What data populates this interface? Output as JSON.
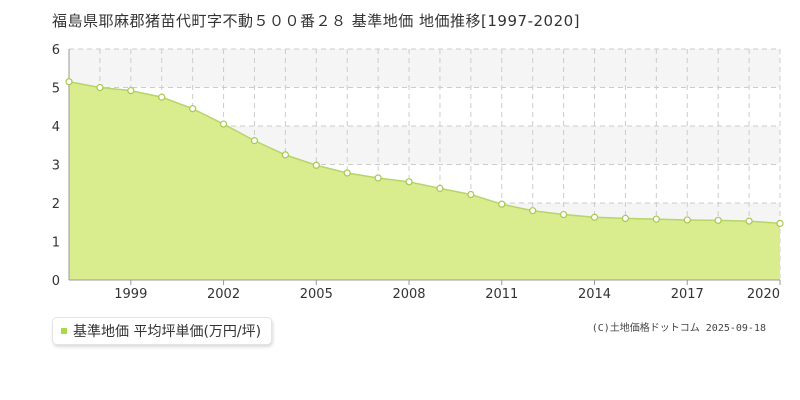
{
  "title": "福島県耶麻郡猪苗代町字不動５００番２８ 基準地価 地価推移[1997-2020]",
  "legend": {
    "label": "基準地価 平均坪単価(万円/坪)"
  },
  "credit": "(C)土地価格ドットコム 2025-09-18",
  "colors": {
    "area_fill": "#d9ec8e",
    "line": "#b6d56a",
    "marker_fill": "#ffffff",
    "marker_stroke": "#a6c94c",
    "legend_swatch": "#a9d94a",
    "grid": "#cccccc",
    "band": "#f5f5f5",
    "axis_text": "#333333"
  },
  "chart_data": {
    "type": "area",
    "x": [
      1997,
      1998,
      1999,
      2000,
      2001,
      2002,
      2003,
      2004,
      2005,
      2006,
      2007,
      2008,
      2009,
      2010,
      2011,
      2012,
      2013,
      2014,
      2015,
      2016,
      2017,
      2018,
      2019,
      2020
    ],
    "series": [
      {
        "name": "基準地価 平均坪単価(万円/坪)",
        "values": [
          5.15,
          5.0,
          4.92,
          4.75,
          4.45,
          4.05,
          3.62,
          3.25,
          2.98,
          2.78,
          2.65,
          2.55,
          2.38,
          2.22,
          1.97,
          1.8,
          1.7,
          1.63,
          1.6,
          1.58,
          1.56,
          1.55,
          1.53,
          1.47
        ]
      }
    ],
    "xticks": [
      "1999",
      "2002",
      "2005",
      "2008",
      "2011",
      "2014",
      "2017",
      "2020"
    ],
    "yticks": [
      "0",
      "1",
      "2",
      "3",
      "4",
      "5",
      "6"
    ],
    "xlim": [
      1997,
      2020
    ],
    "ylim": [
      0,
      6
    ],
    "grid": true
  }
}
